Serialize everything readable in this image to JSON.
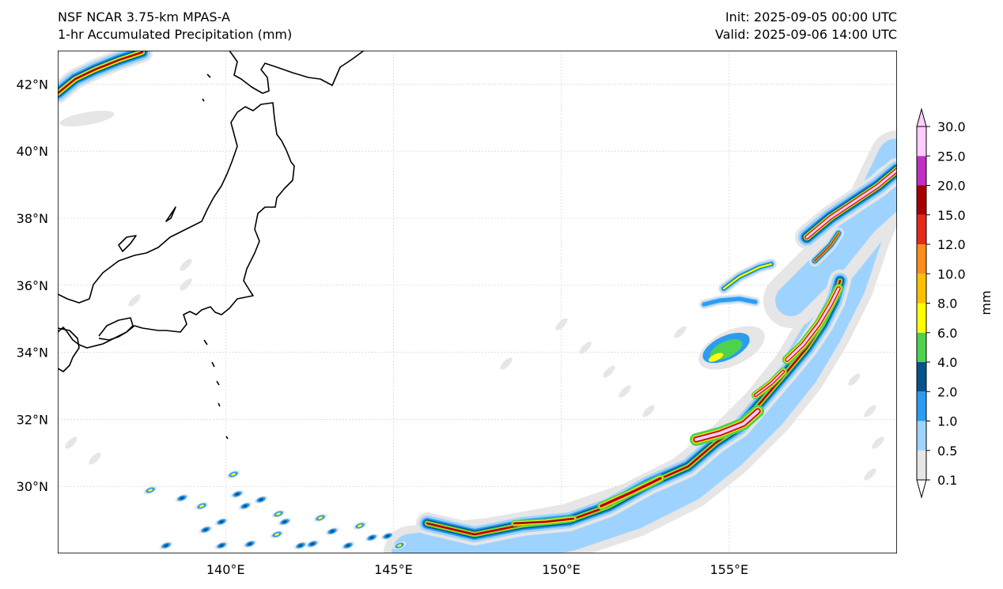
{
  "header": {
    "model": "NSF NCAR 3.75-km MPAS-A",
    "field": "1-hr Accumulated Precipitation (mm)",
    "init": "Init: 2025-09-05 00:00 UTC",
    "valid": "Valid: 2025-09-06 14:00 UTC"
  },
  "map": {
    "lon_range": [
      135.0,
      160.0
    ],
    "lat_range": [
      28.0,
      43.0
    ],
    "lon_ticks": [
      {
        "value": 140,
        "label": "140°E"
      },
      {
        "value": 145,
        "label": "145°E"
      },
      {
        "value": 150,
        "label": "150°E"
      },
      {
        "value": 155,
        "label": "155°E"
      }
    ],
    "lat_ticks": [
      {
        "value": 42,
        "label": "42°N"
      },
      {
        "value": 40,
        "label": "40°N"
      },
      {
        "value": 38,
        "label": "38°N"
      },
      {
        "value": 36,
        "label": "36°N"
      },
      {
        "value": 34,
        "label": "34°N"
      },
      {
        "value": 32,
        "label": "32°N"
      },
      {
        "value": 30,
        "label": "30°N"
      }
    ]
  },
  "colorbar": {
    "unit": "mm",
    "levels": [
      "0.1",
      "0.5",
      "1.0",
      "2.0",
      "4.0",
      "6.0",
      "8.0",
      "10.0",
      "12.0",
      "15.0",
      "20.0",
      "25.0",
      "30.0"
    ],
    "colors": [
      "#e6e6e6",
      "#9fd3ff",
      "#2b9cf2",
      "#04538a",
      "#4ed24e",
      "#ffff00",
      "#ffbf00",
      "#ff8c1a",
      "#e52a1a",
      "#a80000",
      "#c12fc4",
      "#ffccff"
    ]
  },
  "palette": {
    "light": "#e6e6e6",
    "lightblue": "#9fd3ff",
    "blue": "#2b9cf2",
    "navy": "#04538a",
    "green": "#4ed24e",
    "yellow": "#ffff00",
    "gold": "#ffbf00",
    "orange": "#ff8c1a",
    "red": "#e52a1a",
    "darkred": "#a80000",
    "magenta": "#c12fc4",
    "pink": "#ffccff"
  }
}
